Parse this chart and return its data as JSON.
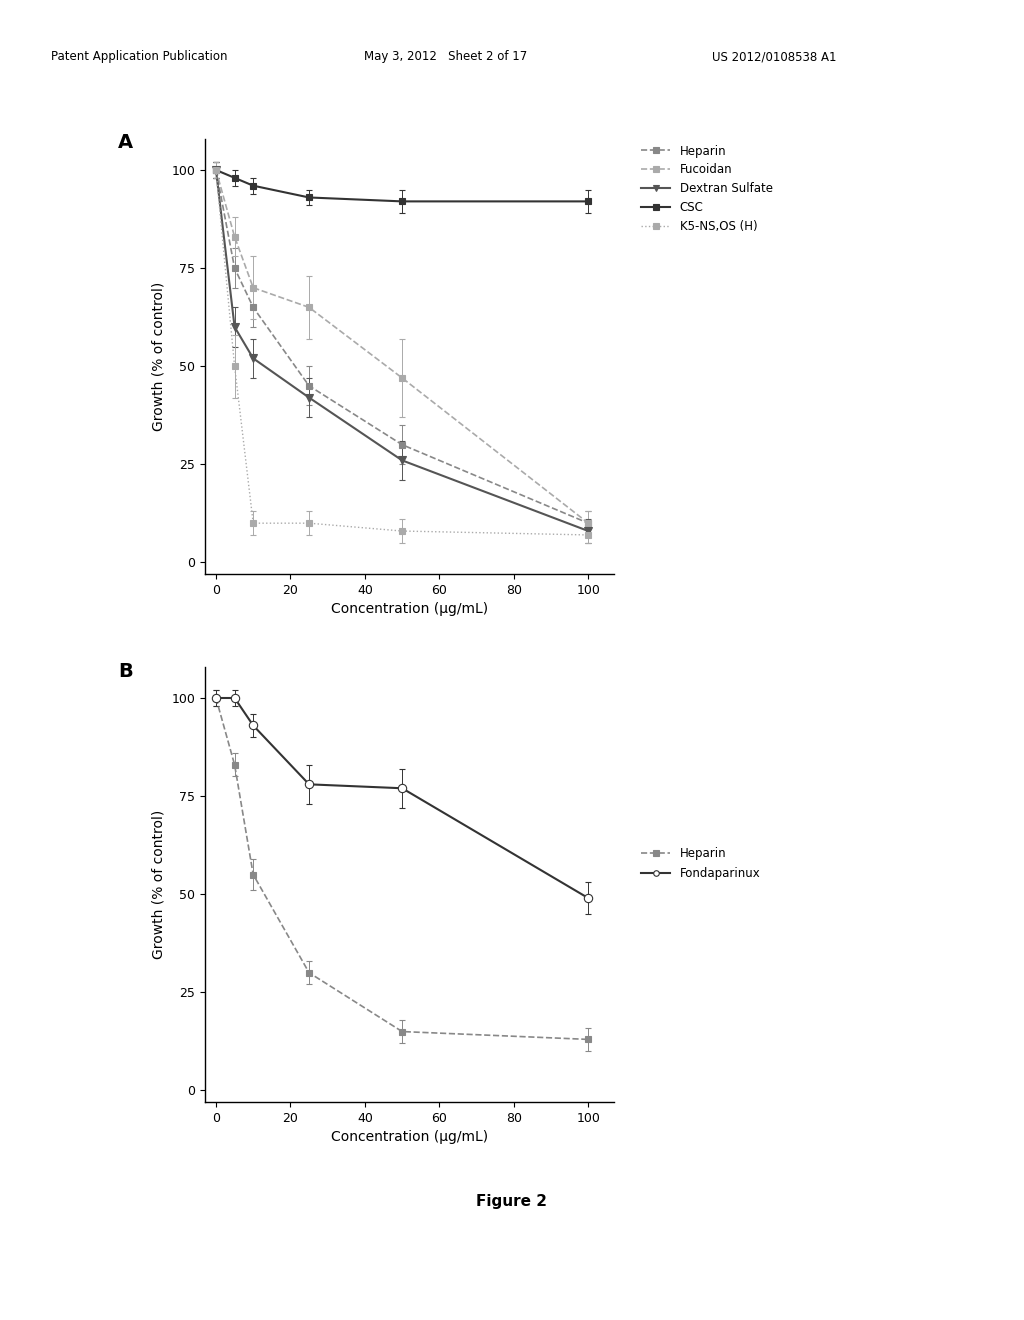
{
  "header_left": "Patent Application Publication",
  "header_mid": "May 3, 2012   Sheet 2 of 17",
  "header_right": "US 2012/0108538 A1",
  "figure_label": "Figure 2",
  "panelA": {
    "label": "A",
    "xlabel": "Concentration (μg/mL)",
    "ylabel": "Growth (% of control)",
    "xlim": [
      -3,
      107
    ],
    "ylim": [
      -3,
      108
    ],
    "xticks": [
      0,
      20,
      40,
      60,
      80,
      100
    ],
    "yticks": [
      0,
      25,
      50,
      75,
      100
    ],
    "series": [
      {
        "name": "Heparin",
        "x": [
          0,
          5,
          10,
          25,
          50,
          100
        ],
        "y": [
          100,
          75,
          65,
          45,
          30,
          10
        ],
        "yerr": [
          2,
          5,
          5,
          5,
          5,
          3
        ],
        "color": "#888888",
        "marker": "s",
        "linestyle": "--",
        "linewidth": 1.2,
        "markersize": 5,
        "markerfacecolor": "#888888"
      },
      {
        "name": "Fucoidan",
        "x": [
          0,
          5,
          10,
          25,
          50,
          100
        ],
        "y": [
          100,
          83,
          70,
          65,
          47,
          10
        ],
        "yerr": [
          2,
          5,
          8,
          8,
          10,
          3
        ],
        "color": "#aaaaaa",
        "marker": "s",
        "linestyle": "--",
        "linewidth": 1.2,
        "markersize": 5,
        "markerfacecolor": "#aaaaaa"
      },
      {
        "name": "Dextran Sulfate",
        "x": [
          0,
          5,
          10,
          25,
          50,
          100
        ],
        "y": [
          100,
          60,
          52,
          42,
          26,
          8
        ],
        "yerr": [
          2,
          5,
          5,
          5,
          5,
          3
        ],
        "color": "#555555",
        "marker": "v",
        "linestyle": "-",
        "linewidth": 1.5,
        "markersize": 6,
        "markerfacecolor": "#555555"
      },
      {
        "name": "CSC",
        "x": [
          0,
          5,
          10,
          25,
          50,
          100
        ],
        "y": [
          100,
          98,
          96,
          93,
          92,
          92
        ],
        "yerr": [
          2,
          2,
          2,
          2,
          3,
          3
        ],
        "color": "#333333",
        "marker": "s",
        "linestyle": "-",
        "linewidth": 1.5,
        "markersize": 5,
        "markerfacecolor": "#333333"
      },
      {
        "name": "K5-NS,OS (H)",
        "x": [
          0,
          5,
          10,
          25,
          50,
          100
        ],
        "y": [
          100,
          50,
          10,
          10,
          8,
          7
        ],
        "yerr": [
          2,
          8,
          3,
          3,
          3,
          2
        ],
        "color": "#aaaaaa",
        "marker": "s",
        "linestyle": ":",
        "linewidth": 1.0,
        "markersize": 5,
        "markerfacecolor": "#aaaaaa"
      }
    ]
  },
  "panelB": {
    "label": "B",
    "xlabel": "Concentration (μg/mL)",
    "ylabel": "Growth (% of control)",
    "xlim": [
      -3,
      107
    ],
    "ylim": [
      -3,
      108
    ],
    "xticks": [
      0,
      20,
      40,
      60,
      80,
      100
    ],
    "yticks": [
      0,
      25,
      50,
      75,
      100
    ],
    "series": [
      {
        "name": "Heparin",
        "x": [
          0,
          5,
          10,
          25,
          50,
          100
        ],
        "y": [
          100,
          83,
          55,
          30,
          15,
          13
        ],
        "yerr": [
          2,
          3,
          4,
          3,
          3,
          3
        ],
        "color": "#888888",
        "marker": "s",
        "linestyle": "--",
        "linewidth": 1.2,
        "markersize": 5,
        "markerfacecolor": "#888888"
      },
      {
        "name": "Fondaparinux",
        "x": [
          0,
          5,
          10,
          25,
          50,
          100
        ],
        "y": [
          100,
          100,
          93,
          78,
          77,
          49
        ],
        "yerr": [
          2,
          2,
          3,
          5,
          5,
          4
        ],
        "color": "#333333",
        "marker": "o",
        "linestyle": "-",
        "linewidth": 1.5,
        "markersize": 6,
        "markerfacecolor": "white"
      }
    ]
  }
}
